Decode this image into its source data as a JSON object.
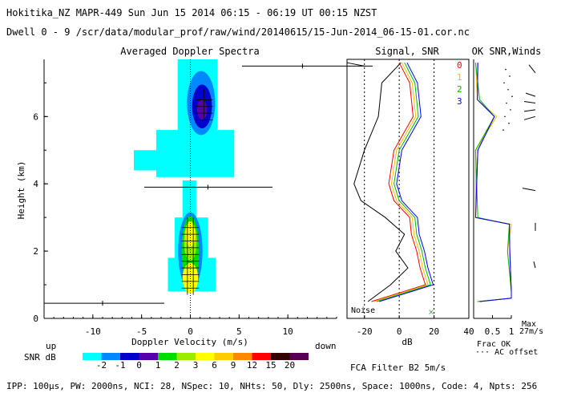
{
  "header": {
    "line1": "Hokitika_NZ  MAPR-449  Sun Jun 15 2014 06:15 - 06:19 UT 00:15 NZST",
    "line2": "Dwell  0 - 9  /scr/data/modular_prof/raw/wind/20140615/15-Jun-2014_06-15-01.cor.nc"
  },
  "footer": {
    "params": "IPP: 100μs,  PW: 2000ns,  NCI: 28,  NSpec: 10, NHts: 50,  Dly: 2500ns,  Space: 1000ns,  Code: 4,  Npts: 256",
    "filter": "FCA Filter B2  5m/s"
  },
  "colors": {
    "scale": [
      "#00ffff",
      "#0088ff",
      "#0000cc",
      "#5500aa",
      "#00dd00",
      "#99ee00",
      "#ffff00",
      "#ffcc00",
      "#ff8800",
      "#ff0000",
      "#330000",
      "#550055"
    ],
    "beam0": "#ff0000",
    "beam1": "#ffbb00",
    "beam2": "#00bb00",
    "beam3": "#0000ff"
  },
  "chart_data": [
    {
      "type": "heatmap",
      "title": "Averaged Doppler Spectra",
      "xlabel": "Doppler Velocity (m/s)",
      "ylabel": "Height (km)",
      "x_left_label": "up",
      "x_right_label": "down",
      "xlim": [
        -15,
        15
      ],
      "ylim": [
        0,
        7.7
      ],
      "xticks": [
        -10,
        -5,
        0,
        5,
        10
      ],
      "yticks": [
        0,
        2,
        4,
        6
      ],
      "colorbar": {
        "label": "SNR dB",
        "ticks": [
          "-2",
          "-1",
          "0",
          "1",
          "2",
          "3",
          "6",
          "9",
          "12",
          "15",
          "20"
        ]
      },
      "features": [
        {
          "height_km": 7.5,
          "velocity": 11.5,
          "type": "cross"
        },
        {
          "height_km": 3.9,
          "velocity": 1.8,
          "type": "cross"
        },
        {
          "height_km": 0.45,
          "velocity": -9.0,
          "type": "cross"
        }
      ]
    },
    {
      "type": "line",
      "title": "Signal, SNR",
      "xlabel": "dB",
      "xlim": [
        -30,
        40
      ],
      "xticks": [
        -20,
        0,
        20,
        40
      ],
      "noise_label": "Noise",
      "series": [
        {
          "name": "signal",
          "height": [
            0.5,
            1.0,
            1.5,
            2.0,
            2.5,
            3.0,
            3.5,
            4.0,
            5.0,
            6.0,
            7.0,
            7.6
          ],
          "db": [
            -18,
            -5,
            5,
            -2,
            3,
            -8,
            -22,
            -26,
            -20,
            -12,
            -10,
            1
          ]
        },
        {
          "name": "snr",
          "height": [
            0.5,
            1.0,
            1.5,
            2.0,
            2.5,
            3.0,
            3.5,
            4.0,
            5.0,
            6.0,
            7.0,
            7.6
          ],
          "db": [
            -16,
            15,
            12,
            10,
            7,
            6,
            -3,
            -6,
            -3,
            8,
            6,
            0
          ]
        }
      ]
    },
    {
      "type": "line",
      "title": "OK SNR,Winds",
      "beams": [
        "0",
        "1",
        "2",
        "3"
      ],
      "xticks": [
        "0.5",
        "1"
      ],
      "xlabel": "Frac OK",
      "note": "··· AC offset",
      "max_label": "Max",
      "max_value": "27m/s"
    }
  ]
}
